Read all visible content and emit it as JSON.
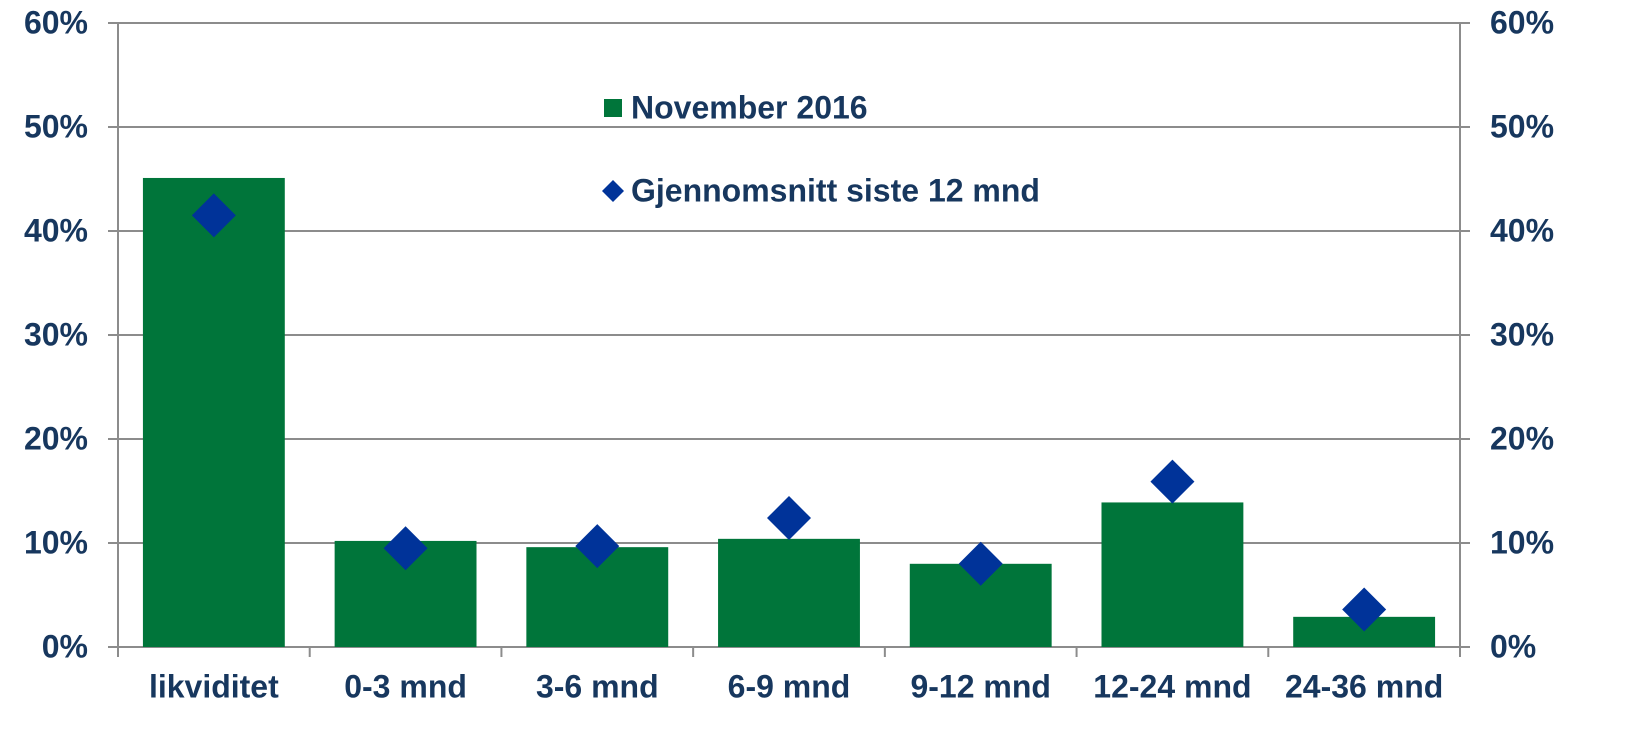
{
  "chart_data": {
    "type": "bar",
    "categories": [
      "likviditet",
      "0-3 mnd",
      "3-6 mnd",
      "6-9 mnd",
      "9-12 mnd",
      "12-24 mnd",
      "24-36 mnd"
    ],
    "series": [
      {
        "name": "November 2016",
        "type": "bar",
        "color": "#00753a",
        "values": [
          45.1,
          10.2,
          9.6,
          10.4,
          8.0,
          13.9,
          2.9
        ]
      },
      {
        "name": "Gjennomsnitt siste 12 mnd",
        "type": "scatter",
        "axis": "y2",
        "color": "#003399",
        "values": [
          41.5,
          9.5,
          9.7,
          12.4,
          8.0,
          15.9,
          3.6
        ]
      }
    ],
    "ylim": [
      0,
      60
    ],
    "yticks": [
      {
        "value": 0,
        "label": "0%"
      },
      {
        "value": 10,
        "label": "10%"
      },
      {
        "value": 20,
        "label": "20%"
      },
      {
        "value": 30,
        "label": "30%"
      },
      {
        "value": 40,
        "label": "40%"
      },
      {
        "value": 50,
        "label": "50%"
      },
      {
        "value": 60,
        "label": "60%"
      }
    ],
    "y2lim": [
      0,
      60
    ],
    "y2ticks": [
      {
        "value": 0,
        "label": "0%"
      },
      {
        "value": 10,
        "label": "10%"
      },
      {
        "value": 20,
        "label": "20%"
      },
      {
        "value": 30,
        "label": "30%"
      },
      {
        "value": 40,
        "label": "40%"
      },
      {
        "value": 50,
        "label": "50%"
      },
      {
        "value": 60,
        "label": "60%"
      }
    ],
    "grid": true
  }
}
